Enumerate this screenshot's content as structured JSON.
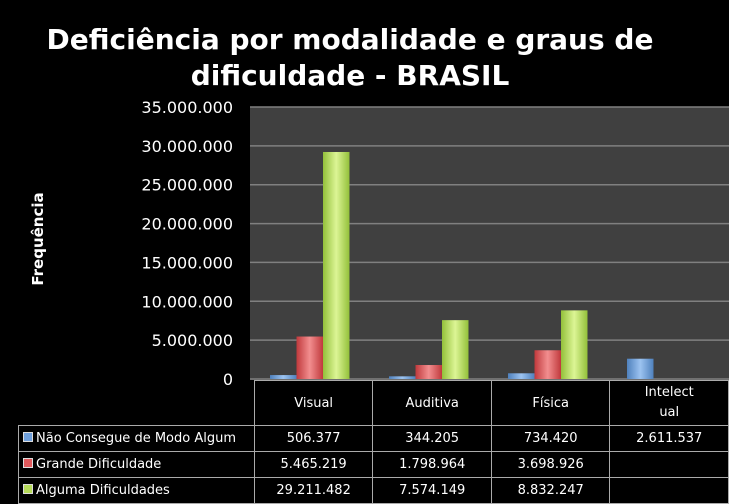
{
  "chart_data": {
    "type": "bar",
    "title": "Deficiência por modalidade e graus de dificuldade - BRASIL",
    "ylabel": "Frequência",
    "xlabel": "",
    "ylim": [
      0,
      35000000
    ],
    "yticks": [
      "0",
      "5.000.000",
      "10.000.000",
      "15.000.000",
      "20.000.000",
      "25.000.000",
      "30.000.000",
      "35.000.000"
    ],
    "grid": true,
    "legend": "data-table-bottom",
    "categories": [
      "Visual",
      "Auditiva",
      "Física",
      "Intelectual"
    ],
    "category_labels": [
      "Visual",
      "Auditiva",
      "Física",
      "Intelect\nual"
    ],
    "series": [
      {
        "name": "Não Consegue de Modo Algum",
        "color": "#6fa0dc",
        "values": [
          506377,
          344205,
          734420,
          2611537
        ],
        "labels": [
          "506.377",
          "344.205",
          "734.420",
          "2.611.537"
        ]
      },
      {
        "name": "Grande Dificuldade",
        "color": "#e0595c",
        "values": [
          5465219,
          1798964,
          3698926,
          null
        ],
        "labels": [
          "5.465.219",
          "1.798.964",
          "3.698.926",
          ""
        ]
      },
      {
        "name": "Alguma Dificuldades",
        "color": "#b6db5a",
        "values": [
          29211482,
          7574149,
          8832247,
          null
        ],
        "labels": [
          "29.211.482",
          "7.574.149",
          "8.832.247",
          ""
        ]
      }
    ]
  }
}
